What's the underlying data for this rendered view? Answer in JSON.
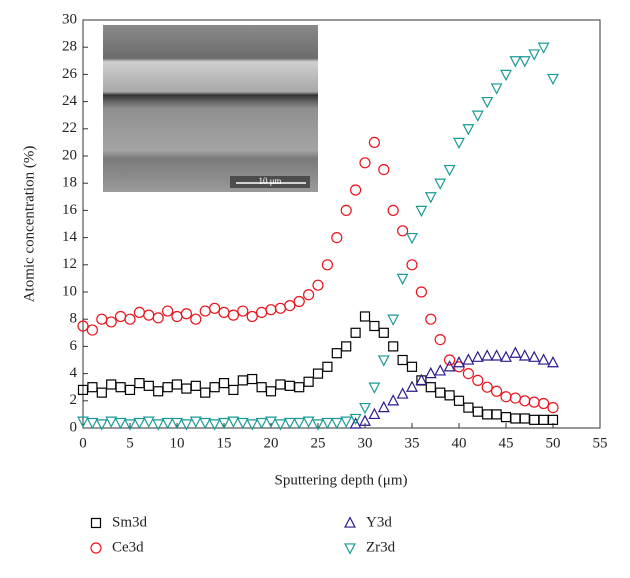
{
  "chart_data": {
    "type": "scatter",
    "x_label": "Sputtering depth (μm)",
    "y_label": "Atomic concentration (%)",
    "inset_scale_label": "10 μm",
    "xlim": [
      0,
      55
    ],
    "xticks": [
      0,
      5,
      10,
      15,
      20,
      25,
      30,
      35,
      40,
      45,
      50,
      55
    ],
    "ylim": [
      0,
      30
    ],
    "yticks": [
      0,
      2,
      4,
      6,
      8,
      10,
      12,
      14,
      16,
      18,
      20,
      22,
      24,
      26,
      28,
      30
    ],
    "x": [
      0,
      1,
      2,
      3,
      4,
      5,
      6,
      7,
      8,
      9,
      10,
      11,
      12,
      13,
      14,
      15,
      16,
      17,
      18,
      19,
      20,
      21,
      22,
      23,
      24,
      25,
      26,
      27,
      28,
      29,
      30,
      31,
      32,
      33,
      34,
      35,
      36,
      37,
      38,
      39,
      40,
      41,
      42,
      43,
      44,
      45,
      46,
      47,
      48,
      49,
      50
    ],
    "series": [
      {
        "name": "Sm3d",
        "color": "#000000",
        "marker": "square",
        "values": [
          2.8,
          3.0,
          2.6,
          3.2,
          3.0,
          2.8,
          3.3,
          3.1,
          2.7,
          3.0,
          3.2,
          2.9,
          3.1,
          2.6,
          3.0,
          3.3,
          2.8,
          3.5,
          3.6,
          3.0,
          2.7,
          3.2,
          3.1,
          3.0,
          3.4,
          4.0,
          4.5,
          5.5,
          6.0,
          7.0,
          8.2,
          7.5,
          7.0,
          6.0,
          5.0,
          4.5,
          3.5,
          3.0,
          2.6,
          2.4,
          2.0,
          1.5,
          1.2,
          1.0,
          1.0,
          0.8,
          0.7,
          0.7,
          0.6,
          0.6,
          0.6
        ]
      },
      {
        "name": "Ce3d",
        "color": "#e8141c",
        "marker": "circle",
        "values": [
          7.5,
          7.2,
          8.0,
          7.8,
          8.2,
          8.0,
          8.5,
          8.3,
          8.1,
          8.6,
          8.2,
          8.4,
          8.0,
          8.6,
          8.8,
          8.5,
          8.3,
          8.6,
          8.2,
          8.5,
          8.7,
          8.8,
          9.0,
          9.3,
          9.8,
          10.5,
          12.0,
          14.0,
          16.0,
          17.5,
          19.5,
          21.0,
          19.0,
          16.0,
          14.5,
          12.0,
          10.0,
          8.0,
          6.5,
          5.0,
          4.5,
          4.0,
          3.5,
          3.0,
          2.7,
          2.3,
          2.2,
          2.0,
          1.9,
          1.8,
          1.5
        ]
      },
      {
        "name": "Y3d",
        "color": "#2b1b8c",
        "marker": "triangle-up",
        "values": [
          null,
          null,
          null,
          null,
          null,
          null,
          null,
          null,
          null,
          null,
          null,
          null,
          null,
          null,
          null,
          null,
          null,
          null,
          null,
          null,
          null,
          null,
          null,
          null,
          null,
          null,
          null,
          null,
          null,
          0.3,
          0.5,
          1.0,
          1.5,
          2.0,
          2.5,
          3.0,
          3.5,
          4.0,
          4.2,
          4.5,
          4.8,
          5.0,
          5.2,
          5.3,
          5.3,
          5.2,
          5.5,
          5.3,
          5.2,
          5.0,
          4.8
        ]
      },
      {
        "name": "Zr3d",
        "color": "#1a9a94",
        "marker": "triangle-down",
        "values": [
          0.5,
          0.4,
          0.3,
          0.5,
          0.4,
          0.3,
          0.4,
          0.5,
          0.3,
          0.4,
          0.4,
          0.3,
          0.5,
          0.4,
          0.3,
          0.4,
          0.5,
          0.4,
          0.3,
          0.4,
          0.5,
          0.3,
          0.4,
          0.4,
          0.5,
          0.3,
          0.4,
          0.4,
          0.5,
          0.7,
          1.5,
          3.0,
          5.0,
          8.0,
          11.0,
          14.0,
          16.0,
          17.0,
          18.0,
          19.0,
          21.0,
          22.0,
          23.0,
          24.0,
          25.0,
          26.0,
          27.0,
          27.0,
          27.5,
          28.0,
          25.7
        ]
      }
    ]
  }
}
